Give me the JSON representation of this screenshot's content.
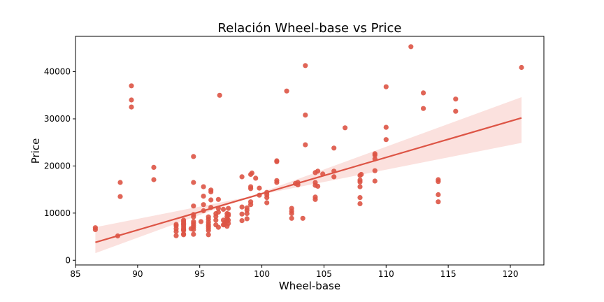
{
  "chart_data": {
    "type": "scatter",
    "title": "Relación Wheel-base vs Price",
    "xlabel": "Wheel-base",
    "ylabel": "Price",
    "xlim": [
      85,
      122.7
    ],
    "ylim": [
      -1000,
      47500
    ],
    "xticks": [
      85,
      90,
      95,
      100,
      105,
      110,
      115,
      120
    ],
    "yticks": [
      0,
      10000,
      20000,
      30000,
      40000
    ],
    "grid": false,
    "colors": {
      "points": "#dd5445",
      "line": "#dd5445",
      "band": "#f8c9c3"
    },
    "regression": {
      "x_start": 86.6,
      "x_end": 120.9,
      "y_start": 3800,
      "y_end": 30200,
      "band_lower": [
        7000,
        24900
      ],
      "band_upper": [
        1500,
        34600
      ]
    },
    "points": [
      [
        88.6,
        13500
      ],
      [
        88.6,
        16500
      ],
      [
        88.4,
        5150
      ],
      [
        86.6,
        6500
      ],
      [
        86.6,
        6900
      ],
      [
        89.5,
        37000
      ],
      [
        89.5,
        34000
      ],
      [
        89.5,
        32500
      ],
      [
        91.3,
        19700
      ],
      [
        91.3,
        17100
      ],
      [
        93.1,
        5200
      ],
      [
        93.1,
        6100
      ],
      [
        93.1,
        6700
      ],
      [
        93.1,
        7300
      ],
      [
        93.1,
        7600
      ],
      [
        93.7,
        5400
      ],
      [
        93.7,
        5600
      ],
      [
        93.7,
        6300
      ],
      [
        93.7,
        6700
      ],
      [
        93.7,
        7100
      ],
      [
        93.7,
        7500
      ],
      [
        93.7,
        7800
      ],
      [
        93.7,
        8200
      ],
      [
        93.7,
        8500
      ],
      [
        93.7,
        6500
      ],
      [
        94.3,
        6700
      ],
      [
        94.5,
        5500
      ],
      [
        94.5,
        6500
      ],
      [
        94.5,
        7000
      ],
      [
        94.5,
        7400
      ],
      [
        94.5,
        7800
      ],
      [
        94.5,
        8200
      ],
      [
        94.5,
        9200
      ],
      [
        94.5,
        9700
      ],
      [
        94.5,
        11500
      ],
      [
        94.5,
        16500
      ],
      [
        94.5,
        22000
      ],
      [
        95.1,
        8200
      ],
      [
        95.3,
        10500
      ],
      [
        95.3,
        11800
      ],
      [
        95.3,
        13600
      ],
      [
        95.3,
        15600
      ],
      [
        95.7,
        5400
      ],
      [
        95.7,
        6300
      ],
      [
        95.7,
        6800
      ],
      [
        95.7,
        7200
      ],
      [
        95.7,
        7600
      ],
      [
        95.7,
        8100
      ],
      [
        95.7,
        8700
      ],
      [
        95.7,
        9200
      ],
      [
        95.9,
        11200
      ],
      [
        95.9,
        12800
      ],
      [
        95.9,
        14500
      ],
      [
        95.9,
        14900
      ],
      [
        96.3,
        7500
      ],
      [
        96.3,
        8500
      ],
      [
        96.3,
        9300
      ],
      [
        96.3,
        9900
      ],
      [
        96.5,
        7000
      ],
      [
        96.5,
        10200
      ],
      [
        96.5,
        11000
      ],
      [
        96.5,
        12900
      ],
      [
        96.6,
        35000
      ],
      [
        96.9,
        7500
      ],
      [
        96.9,
        8500
      ],
      [
        96.9,
        10800
      ],
      [
        97.0,
        7600
      ],
      [
        97.0,
        8000
      ],
      [
        97.2,
        7200
      ],
      [
        97.2,
        8300
      ],
      [
        97.2,
        8800
      ],
      [
        97.2,
        9300
      ],
      [
        97.2,
        9900
      ],
      [
        97.3,
        7800
      ],
      [
        97.3,
        8500
      ],
      [
        97.3,
        9500
      ],
      [
        97.3,
        9800
      ],
      [
        97.3,
        11000
      ],
      [
        98.4,
        8400
      ],
      [
        98.4,
        9800
      ],
      [
        98.4,
        11300
      ],
      [
        98.4,
        17700
      ],
      [
        98.8,
        8800
      ],
      [
        98.8,
        9900
      ],
      [
        98.8,
        10600
      ],
      [
        98.8,
        11100
      ],
      [
        99.1,
        11800
      ],
      [
        99.1,
        12400
      ],
      [
        99.1,
        15200
      ],
      [
        99.1,
        15600
      ],
      [
        99.1,
        18200
      ],
      [
        99.2,
        18500
      ],
      [
        99.5,
        17400
      ],
      [
        99.8,
        13800
      ],
      [
        99.8,
        15300
      ],
      [
        100.4,
        12200
      ],
      [
        100.4,
        13300
      ],
      [
        100.4,
        13900
      ],
      [
        100.4,
        14400
      ],
      [
        101.2,
        16500
      ],
      [
        101.2,
        16900
      ],
      [
        101.2,
        20900
      ],
      [
        101.2,
        21100
      ],
      [
        102.0,
        35900
      ],
      [
        102.4,
        8900
      ],
      [
        102.4,
        9900
      ],
      [
        102.4,
        10400
      ],
      [
        102.4,
        11000
      ],
      [
        102.7,
        16300
      ],
      [
        102.9,
        16000
      ],
      [
        102.9,
        16500
      ],
      [
        103.3,
        8900
      ],
      [
        103.5,
        41300
      ],
      [
        103.5,
        30800
      ],
      [
        103.5,
        24500
      ],
      [
        104.3,
        12900
      ],
      [
        104.3,
        13400
      ],
      [
        104.3,
        15900
      ],
      [
        104.3,
        16500
      ],
      [
        104.3,
        18600
      ],
      [
        104.5,
        15700
      ],
      [
        104.5,
        18900
      ],
      [
        104.9,
        18300
      ],
      [
        105.8,
        17700
      ],
      [
        105.8,
        18900
      ],
      [
        105.8,
        23800
      ],
      [
        106.7,
        28100
      ],
      [
        107.9,
        12000
      ],
      [
        107.9,
        13300
      ],
      [
        107.9,
        15600
      ],
      [
        107.9,
        16600
      ],
      [
        107.9,
        17000
      ],
      [
        107.9,
        18000
      ],
      [
        108.0,
        18200
      ],
      [
        109.1,
        16800
      ],
      [
        109.1,
        19000
      ],
      [
        109.1,
        21500
      ],
      [
        109.1,
        22300
      ],
      [
        109.1,
        22600
      ],
      [
        110.0,
        25600
      ],
      [
        110.0,
        28200
      ],
      [
        110.0,
        36800
      ],
      [
        112.0,
        45300
      ],
      [
        113.0,
        32200
      ],
      [
        113.0,
        35500
      ],
      [
        114.2,
        12400
      ],
      [
        114.2,
        13900
      ],
      [
        114.2,
        16700
      ],
      [
        114.2,
        17100
      ],
      [
        115.6,
        31600
      ],
      [
        115.6,
        34200
      ],
      [
        120.9,
        40900
      ]
    ]
  }
}
